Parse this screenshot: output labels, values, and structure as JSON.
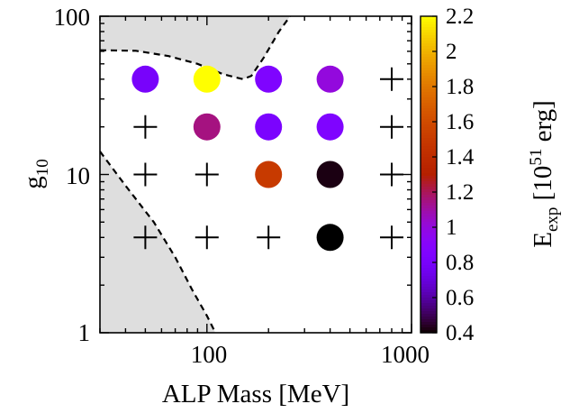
{
  "chart_data": {
    "type": "scatter",
    "xlabel": "ALP Mass [MeV]",
    "ylabel": {
      "main": "g",
      "sub": "10"
    },
    "xscale": "log",
    "yscale": "log",
    "xlim": [
      30,
      1000
    ],
    "ylim": [
      1,
      100
    ],
    "x_ticks": [
      {
        "value": 100,
        "label": "100"
      },
      {
        "value": 1000,
        "label": "1000"
      }
    ],
    "y_ticks": [
      {
        "value": 1,
        "label": "1"
      },
      {
        "value": 10,
        "label": "10"
      },
      {
        "value": 100,
        "label": "100"
      }
    ],
    "colorbar": {
      "title": {
        "main": "E",
        "sub": "exp",
        "rest": " [10",
        "sup": "51",
        "end": " erg]"
      },
      "range": [
        0.4,
        2.2
      ],
      "ticks": [
        "0.4",
        "0.6",
        "0.8",
        "1",
        "1.2",
        "1.4",
        "1.6",
        "1.8",
        "2",
        "2.2"
      ],
      "colormap": "gnuplot-rgbformulae-7-5-15"
    },
    "exploding_points": [
      {
        "mass": 50,
        "g10": 40,
        "E_exp": 0.8
      },
      {
        "mass": 100,
        "g10": 40,
        "E_exp": 2.2
      },
      {
        "mass": 200,
        "g10": 40,
        "E_exp": 0.85
      },
      {
        "mass": 400,
        "g10": 40,
        "E_exp": 1.0
      },
      {
        "mass": 100,
        "g10": 20,
        "E_exp": 1.15
      },
      {
        "mass": 200,
        "g10": 20,
        "E_exp": 0.82
      },
      {
        "mass": 400,
        "g10": 20,
        "E_exp": 0.85
      },
      {
        "mass": 200,
        "g10": 10,
        "E_exp": 1.5
      },
      {
        "mass": 400,
        "g10": 10,
        "E_exp": 0.42
      },
      {
        "mass": 400,
        "g10": 4,
        "E_exp": 0.4
      }
    ],
    "non_exploding_points": [
      {
        "mass": 800,
        "g10": 40
      },
      {
        "mass": 50,
        "g10": 20
      },
      {
        "mass": 800,
        "g10": 20
      },
      {
        "mass": 50,
        "g10": 10
      },
      {
        "mass": 100,
        "g10": 10
      },
      {
        "mass": 800,
        "g10": 10
      },
      {
        "mass": 50,
        "g10": 4
      },
      {
        "mass": 100,
        "g10": 4
      },
      {
        "mass": 200,
        "g10": 4
      },
      {
        "mass": 800,
        "g10": 4
      }
    ],
    "excluded_region_upper": [
      {
        "mass": 30,
        "g10": 61
      },
      {
        "mass": 45,
        "g10": 60.5
      },
      {
        "mass": 65,
        "g10": 56
      },
      {
        "mass": 90,
        "g10": 50
      },
      {
        "mass": 120,
        "g10": 43
      },
      {
        "mass": 150,
        "g10": 40
      },
      {
        "mass": 165,
        "g10": 42
      },
      {
        "mass": 190,
        "g10": 55
      },
      {
        "mass": 225,
        "g10": 80
      },
      {
        "mass": 255,
        "g10": 100
      }
    ],
    "excluded_region_lower": [
      {
        "mass": 30,
        "g10": 14
      },
      {
        "mass": 40,
        "g10": 8.5
      },
      {
        "mass": 55,
        "g10": 5
      },
      {
        "mass": 70,
        "g10": 3
      },
      {
        "mass": 85,
        "g10": 1.85
      },
      {
        "mass": 100,
        "g10": 1.28
      },
      {
        "mass": 110,
        "g10": 1
      }
    ],
    "region_fill": "#dedede",
    "grid": false,
    "legend": "none"
  }
}
